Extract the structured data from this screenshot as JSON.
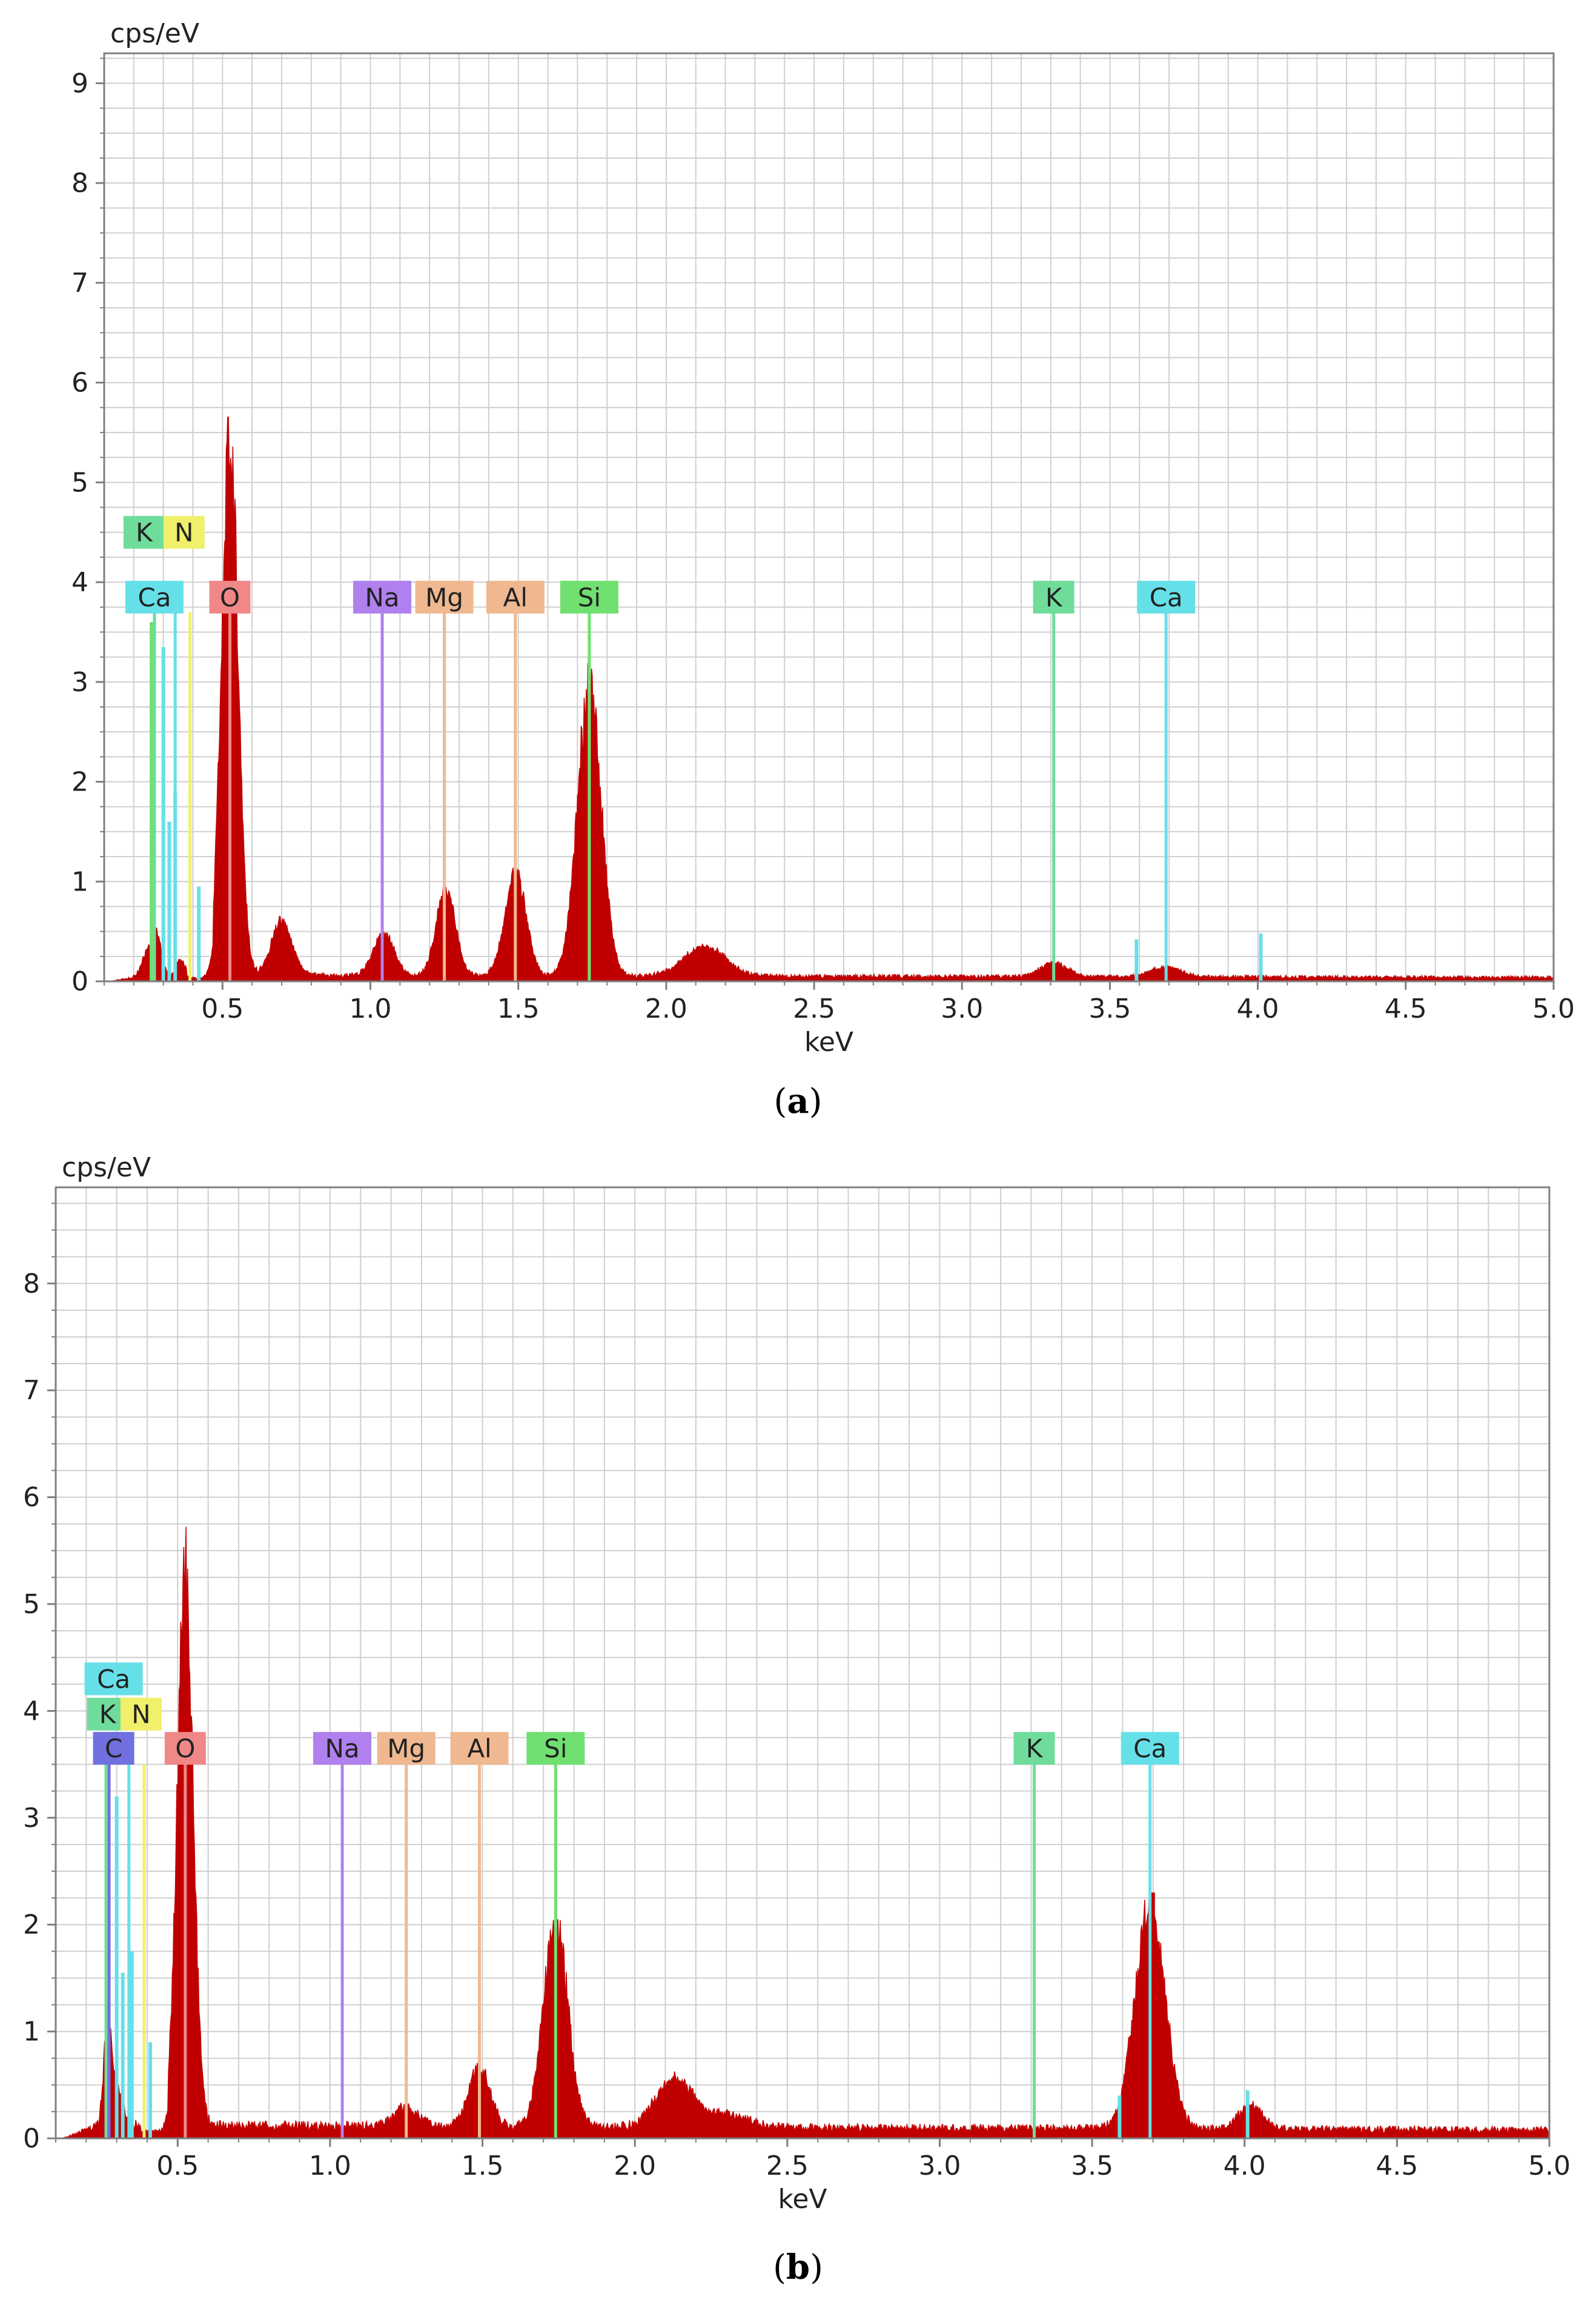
{
  "colors": {
    "spectrum": "#c00000",
    "grid": "#cfcfcf",
    "axis": "#7f7f7f"
  },
  "chart_data": [
    {
      "type": "area",
      "panel": "(a)",
      "xlabel": "keV",
      "ylabel": "cps/eV",
      "xlim": [
        0.1,
        5.0
      ],
      "ylim": [
        0,
        9.3
      ],
      "xticks": [
        "0.5",
        "1.0",
        "1.5",
        "2.0",
        "2.5",
        "3.0",
        "3.5",
        "4.0",
        "4.5",
        "5.0"
      ],
      "yticks": [
        "0",
        "1",
        "2",
        "3",
        "4",
        "5",
        "6",
        "7",
        "8",
        "9"
      ],
      "grid": true,
      "background_level": 0.06,
      "peaks": [
        {
          "x": 0.25,
          "height": 0.25,
          "width": 0.02
        },
        {
          "x": 0.28,
          "height": 0.35,
          "width": 0.015
        },
        {
          "x": 0.36,
          "height": 0.15,
          "width": 0.015
        },
        {
          "x": 0.525,
          "height": 5.4,
          "width": 0.028
        },
        {
          "x": 0.7,
          "height": 0.55,
          "width": 0.035
        },
        {
          "x": 1.045,
          "height": 0.42,
          "width": 0.035
        },
        {
          "x": 1.255,
          "height": 0.88,
          "width": 0.032
        },
        {
          "x": 1.49,
          "height": 1.05,
          "width": 0.035
        },
        {
          "x": 1.74,
          "height": 2.9,
          "width": 0.04
        },
        {
          "x": 2.13,
          "height": 0.3,
          "width": 0.07
        },
        {
          "x": 3.31,
          "height": 0.14,
          "width": 0.045
        },
        {
          "x": 3.69,
          "height": 0.1,
          "width": 0.05
        }
      ],
      "element_lines": [
        {
          "label": "K",
          "x": 0.27,
          "top": 3.7,
          "color": "#6fdc9b"
        },
        {
          "label": "N",
          "x": 0.39,
          "top": 3.7,
          "color": "#f0f06a"
        },
        {
          "label": "Ca",
          "x": 0.34,
          "top": 3.7,
          "color": "#66e0e8"
        },
        {
          "label": "O",
          "x": 0.525,
          "top": 3.7,
          "color": "#f08888"
        },
        {
          "label": "Na",
          "x": 1.04,
          "top": 3.7,
          "color": "#b080ee"
        },
        {
          "label": "Mg",
          "x": 1.25,
          "top": 3.7,
          "color": "#f0b890"
        },
        {
          "label": "Al",
          "x": 1.49,
          "top": 3.7,
          "color": "#f0b890"
        },
        {
          "label": "Si",
          "x": 1.74,
          "top": 3.7,
          "color": "#70e070"
        },
        {
          "label": "K",
          "x": 3.31,
          "top": 3.7,
          "color": "#6fdc9b"
        },
        {
          "label": "Ca",
          "x": 3.69,
          "top": 3.7,
          "color": "#66e0e8"
        }
      ],
      "labels": [
        {
          "text": "K",
          "x": 0.235,
          "y": 4.5,
          "color": "#6fdc9b"
        },
        {
          "text": "N",
          "x": 0.37,
          "y": 4.5,
          "color": "#f0f06a"
        },
        {
          "text": "Ca",
          "x": 0.27,
          "y": 3.85,
          "color": "#66e0e8"
        },
        {
          "text": "O",
          "x": 0.525,
          "y": 3.85,
          "color": "#f08888"
        },
        {
          "text": "Na",
          "x": 1.04,
          "y": 3.85,
          "color": "#b080ee"
        },
        {
          "text": "Mg",
          "x": 1.25,
          "y": 3.85,
          "color": "#f0b890"
        },
        {
          "text": "Al",
          "x": 1.49,
          "y": 3.85,
          "color": "#f0b890"
        },
        {
          "text": "Si",
          "x": 1.74,
          "y": 3.85,
          "color": "#70e070"
        },
        {
          "text": "K",
          "x": 3.31,
          "y": 3.85,
          "color": "#6fdc9b"
        },
        {
          "text": "Ca",
          "x": 3.69,
          "y": 3.85,
          "color": "#66e0e8"
        }
      ],
      "spikes": [
        {
          "x": 0.26,
          "height": 3.6,
          "color": "#70e070"
        },
        {
          "x": 0.3,
          "height": 3.35,
          "color": "#66e0e8"
        },
        {
          "x": 0.32,
          "height": 1.6,
          "color": "#66e0e8"
        },
        {
          "x": 0.34,
          "height": 1.9,
          "color": "#66e0e8"
        },
        {
          "x": 0.42,
          "height": 0.95,
          "color": "#66e0e8"
        },
        {
          "x": 3.59,
          "height": 0.42,
          "color": "#66e0e8"
        },
        {
          "x": 4.01,
          "height": 0.48,
          "color": "#66e0e8"
        }
      ]
    },
    {
      "type": "area",
      "panel": "(b)",
      "xlabel": "keV",
      "ylabel": "cps/eV",
      "xlim": [
        0.1,
        5.0
      ],
      "ylim": [
        0,
        8.9
      ],
      "xticks": [
        "0.5",
        "1.0",
        "1.5",
        "2.0",
        "2.5",
        "3.0",
        "3.5",
        "4.0",
        "4.5",
        "5.0"
      ],
      "yticks": [
        "0",
        "1",
        "2",
        "3",
        "4",
        "5",
        "6",
        "7",
        "8"
      ],
      "grid": true,
      "background_level": 0.12,
      "peaks": [
        {
          "x": 0.27,
          "height": 0.95,
          "width": 0.012
        },
        {
          "x": 0.3,
          "height": 0.35,
          "width": 0.02
        },
        {
          "x": 0.525,
          "height": 5.1,
          "width": 0.026
        },
        {
          "x": 1.25,
          "height": 0.18,
          "width": 0.04
        },
        {
          "x": 1.49,
          "height": 0.55,
          "width": 0.035
        },
        {
          "x": 1.74,
          "height": 1.9,
          "width": 0.04
        },
        {
          "x": 2.13,
          "height": 0.45,
          "width": 0.06
        },
        {
          "x": 2.3,
          "height": 0.12,
          "width": 0.07
        },
        {
          "x": 3.69,
          "height": 2.05,
          "width": 0.05
        },
        {
          "x": 4.02,
          "height": 0.22,
          "width": 0.04
        }
      ],
      "element_lines": [
        {
          "label": "C",
          "x": 0.275,
          "top": 3.5,
          "color": "#7070e0"
        },
        {
          "label": "K",
          "x": 0.265,
          "top": 3.5,
          "color": "#6fdc9b"
        },
        {
          "label": "N",
          "x": 0.39,
          "top": 3.5,
          "color": "#f0f06a"
        },
        {
          "label": "Ca",
          "x": 0.34,
          "top": 3.5,
          "color": "#66e0e8"
        },
        {
          "label": "O",
          "x": 0.525,
          "top": 3.5,
          "color": "#f08888"
        },
        {
          "label": "Na",
          "x": 1.04,
          "top": 3.5,
          "color": "#b080ee"
        },
        {
          "label": "Mg",
          "x": 1.25,
          "top": 3.5,
          "color": "#f0b890"
        },
        {
          "label": "Al",
          "x": 1.49,
          "top": 3.5,
          "color": "#f0b890"
        },
        {
          "label": "Si",
          "x": 1.74,
          "top": 3.5,
          "color": "#70e070"
        },
        {
          "label": "K",
          "x": 3.31,
          "top": 3.5,
          "color": "#6fdc9b"
        },
        {
          "label": "Ca",
          "x": 3.69,
          "top": 3.5,
          "color": "#66e0e8"
        }
      ],
      "labels": [
        {
          "text": "Ca",
          "x": 0.29,
          "y": 4.3,
          "color": "#66e0e8"
        },
        {
          "text": "K",
          "x": 0.27,
          "y": 3.97,
          "color": "#6fdc9b"
        },
        {
          "text": "N",
          "x": 0.38,
          "y": 3.97,
          "color": "#f0f06a"
        },
        {
          "text": "C",
          "x": 0.29,
          "y": 3.65,
          "color": "#7070e0"
        },
        {
          "text": "O",
          "x": 0.525,
          "y": 3.65,
          "color": "#f08888"
        },
        {
          "text": "Na",
          "x": 1.04,
          "y": 3.65,
          "color": "#b080ee"
        },
        {
          "text": "Mg",
          "x": 1.25,
          "y": 3.65,
          "color": "#f0b890"
        },
        {
          "text": "Al",
          "x": 1.49,
          "y": 3.65,
          "color": "#f0b890"
        },
        {
          "text": "Si",
          "x": 1.74,
          "y": 3.65,
          "color": "#70e070"
        },
        {
          "text": "K",
          "x": 3.31,
          "y": 3.65,
          "color": "#6fdc9b"
        },
        {
          "text": "Ca",
          "x": 3.69,
          "y": 3.65,
          "color": "#66e0e8"
        }
      ],
      "spikes": [
        {
          "x": 0.3,
          "height": 3.2,
          "color": "#66e0e8"
        },
        {
          "x": 0.32,
          "height": 1.55,
          "color": "#66e0e8"
        },
        {
          "x": 0.35,
          "height": 1.75,
          "color": "#66e0e8"
        },
        {
          "x": 0.41,
          "height": 0.9,
          "color": "#66e0e8"
        },
        {
          "x": 3.59,
          "height": 0.4,
          "color": "#66e0e8"
        },
        {
          "x": 4.01,
          "height": 0.45,
          "color": "#66e0e8"
        },
        {
          "x": 3.7,
          "height": 2.3,
          "color": "#c00000"
        }
      ]
    }
  ],
  "captions": [
    {
      "letter": "a"
    },
    {
      "letter": "b"
    }
  ]
}
